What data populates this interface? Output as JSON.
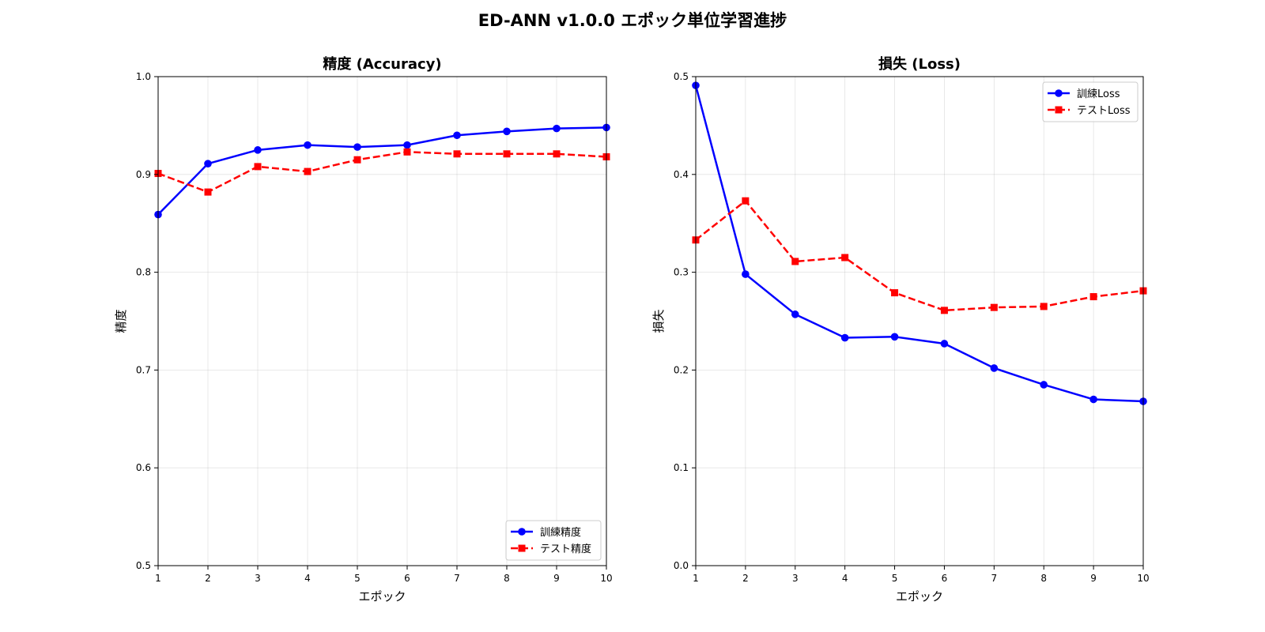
{
  "figure": {
    "title": "ED-ANN v1.0.0 エポック単位学習進捗"
  },
  "chart_data": [
    {
      "type": "line",
      "title": "精度 (Accuracy)",
      "xlabel": "エポック",
      "ylabel": "精度",
      "xlim": [
        1,
        10
      ],
      "ylim": [
        0.5,
        1.0
      ],
      "x": [
        1,
        2,
        3,
        4,
        5,
        6,
        7,
        8,
        9,
        10
      ],
      "xticks": [
        "1",
        "2",
        "3",
        "4",
        "5",
        "6",
        "7",
        "8",
        "9",
        "10"
      ],
      "yticks": [
        0.5,
        0.6,
        0.7,
        0.8,
        0.9,
        1.0
      ],
      "ytick_labels": [
        "0.5",
        "0.6",
        "0.7",
        "0.8",
        "0.9",
        "1.0"
      ],
      "grid": true,
      "legend": "lower-right",
      "series": [
        {
          "name": "訓練精度",
          "color": "#0000ff",
          "marker": "circle",
          "dash": "solid",
          "values": [
            0.859,
            0.911,
            0.925,
            0.93,
            0.928,
            0.93,
            0.94,
            0.944,
            0.947,
            0.948
          ]
        },
        {
          "name": "テスト精度",
          "color": "#ff0000",
          "marker": "square",
          "dash": "dashed",
          "values": [
            0.901,
            0.882,
            0.908,
            0.903,
            0.915,
            0.923,
            0.921,
            0.921,
            0.921,
            0.918
          ]
        }
      ]
    },
    {
      "type": "line",
      "title": "損失 (Loss)",
      "xlabel": "エポック",
      "ylabel": "損失",
      "xlim": [
        1,
        10
      ],
      "ylim": [
        0.0,
        0.5
      ],
      "x": [
        1,
        2,
        3,
        4,
        5,
        6,
        7,
        8,
        9,
        10
      ],
      "xticks": [
        "1",
        "2",
        "3",
        "4",
        "5",
        "6",
        "7",
        "8",
        "9",
        "10"
      ],
      "yticks": [
        0.0,
        0.1,
        0.2,
        0.3,
        0.4,
        0.5
      ],
      "ytick_labels": [
        "0.0",
        "0.1",
        "0.2",
        "0.3",
        "0.4",
        "0.5"
      ],
      "grid": true,
      "legend": "top-right",
      "series": [
        {
          "name": "訓練Loss",
          "color": "#0000ff",
          "marker": "circle",
          "dash": "solid",
          "values": [
            0.491,
            0.298,
            0.257,
            0.233,
            0.234,
            0.227,
            0.202,
            0.185,
            0.17,
            0.168
          ]
        },
        {
          "name": "テストLoss",
          "color": "#ff0000",
          "marker": "square",
          "dash": "dashed",
          "values": [
            0.333,
            0.373,
            0.311,
            0.315,
            0.279,
            0.261,
            0.264,
            0.265,
            0.275,
            0.281
          ]
        }
      ]
    }
  ]
}
